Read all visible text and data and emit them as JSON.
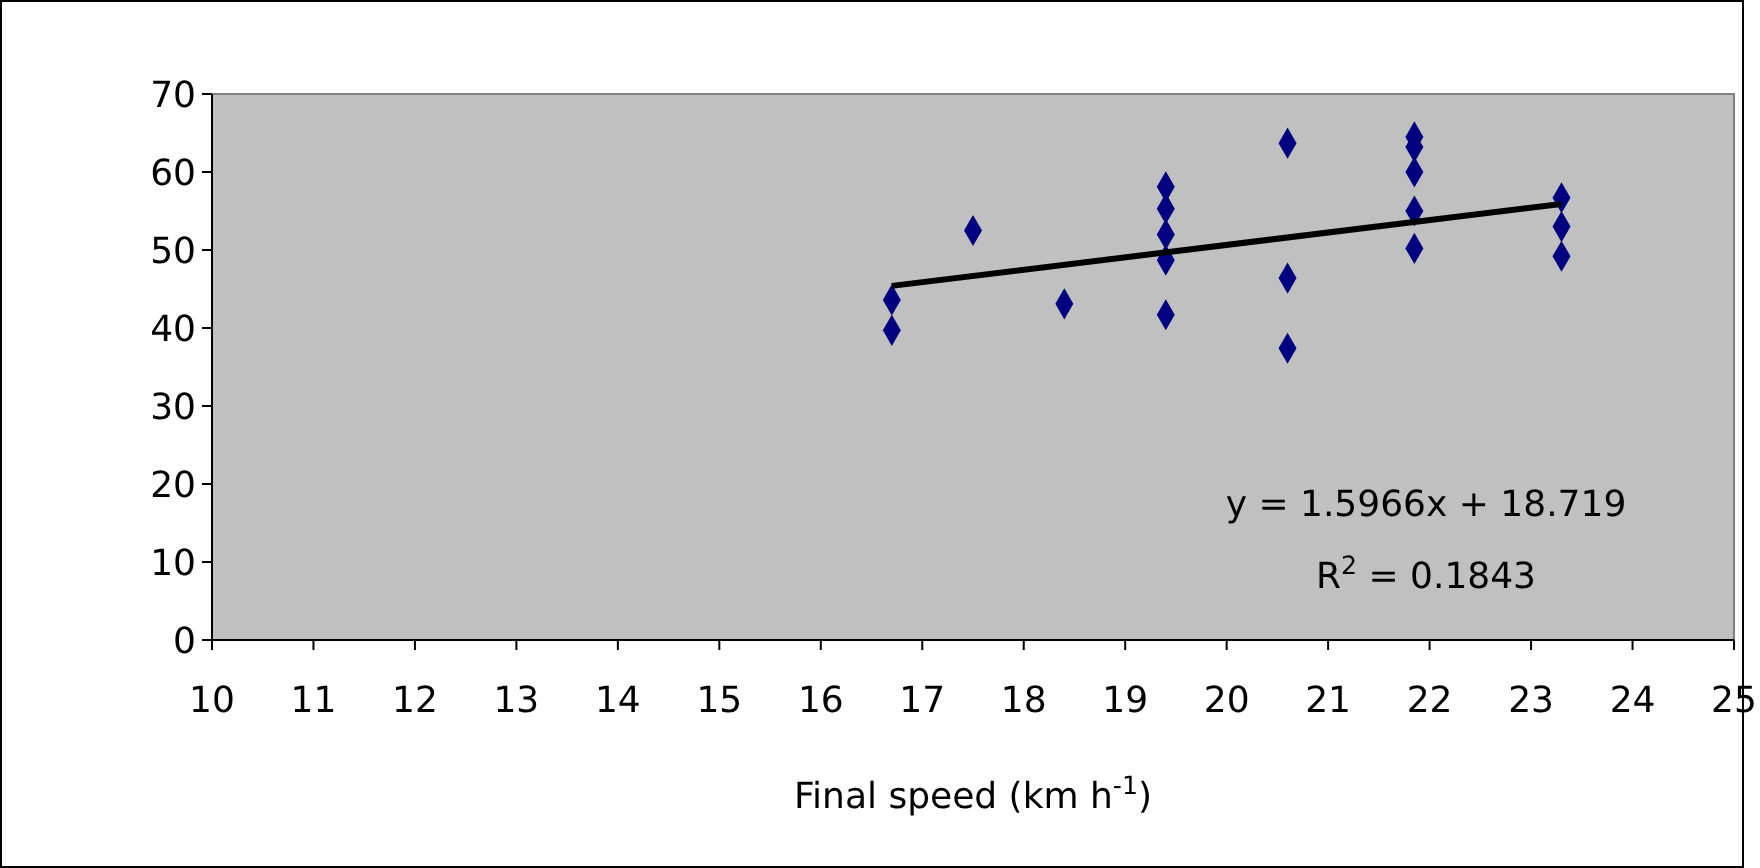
{
  "chart_data": {
    "type": "scatter",
    "xlabel": "Final speed (km h$^{-1}$)",
    "xlim": [
      10,
      25
    ],
    "xticks": [
      10,
      11,
      12,
      13,
      14,
      15,
      16,
      17,
      18,
      19,
      20,
      21,
      22,
      23,
      24,
      25
    ],
    "ylim": [
      0,
      70
    ],
    "yticks": [
      0,
      10,
      20,
      30,
      40,
      50,
      60,
      70
    ],
    "grid": false,
    "marker": "diamond",
    "series": [
      {
        "color": "#000080",
        "x": [
          16.7,
          16.7,
          17.5,
          18.4,
          19.4,
          19.4,
          19.4,
          19.4,
          19.4,
          20.6,
          20.6,
          20.6,
          21.85,
          21.85,
          21.85,
          21.85,
          21.85,
          23.3,
          23.3,
          23.3
        ],
        "values": [
          43.6,
          39.7,
          52.5,
          43.1,
          58.1,
          55.3,
          52.0,
          48.7,
          41.7,
          63.7,
          46.4,
          37.4,
          64.5,
          63.2,
          60.0,
          55.0,
          50.2,
          56.7,
          53.0,
          49.2
        ]
      },
      {
        "type": "line",
        "color": "#000000",
        "marker": "none",
        "line_style": "solid",
        "x": [
          16.7,
          23.3
        ],
        "values": [
          45.4,
          55.9
        ]
      }
    ],
    "annotations": [
      "y = 1.5966x + 18.719",
      "R$^{2}$ = 0.1843"
    ]
  }
}
